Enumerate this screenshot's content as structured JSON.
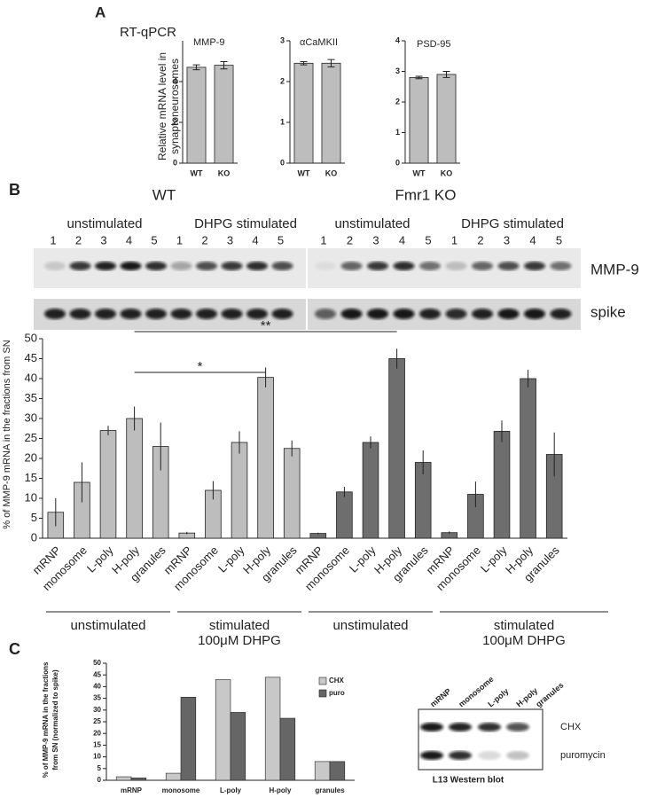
{
  "panel_a": {
    "label": "A",
    "title": "RT-qPCR",
    "ylabel": [
      "Relative mRNA level in",
      "synaptoneurosomes"
    ]
  },
  "panel_b": {
    "label": "B",
    "blot": {
      "genotypes": [
        "WT",
        "Fmr1 KO"
      ],
      "conditions": [
        "unstimulated",
        "DHPG stimulated"
      ],
      "lanes": [
        "1",
        "2",
        "3",
        "4",
        "5"
      ],
      "rows": [
        "MMP-9",
        "spike"
      ]
    }
  },
  "panel_c": {
    "label": "C",
    "western": {
      "lanes": [
        "mRNP",
        "monosome",
        "L-poly",
        "H-poly",
        "granules"
      ],
      "rows": [
        "CHX",
        "puromycin"
      ],
      "caption": "L13 Western blot"
    }
  },
  "chart_data": [
    {
      "type": "bar",
      "title": "MMP-9",
      "categories": [
        "WT",
        "KO"
      ],
      "values": [
        4.7,
        4.8
      ],
      "errors": [
        0.12,
        0.18
      ],
      "color": "#bdbdbd",
      "ylim": [
        0,
        6
      ],
      "yticks": [
        0,
        2,
        4
      ]
    },
    {
      "type": "bar",
      "title": "αCaMKII",
      "categories": [
        "WT",
        "KO"
      ],
      "values": [
        2.45,
        2.45
      ],
      "errors": [
        0.04,
        0.09
      ],
      "color": "#bdbdbd",
      "ylim": [
        0,
        3
      ],
      "yticks": [
        0,
        1,
        2,
        3
      ]
    },
    {
      "type": "bar",
      "title": "PSD-95",
      "categories": [
        "WT",
        "KO"
      ],
      "values": [
        2.8,
        2.9
      ],
      "errors": [
        0.04,
        0.1
      ],
      "color": "#bdbdbd",
      "ylim": [
        0,
        4
      ],
      "yticks": [
        0,
        1,
        2,
        3,
        4
      ]
    },
    {
      "type": "bar",
      "ylabel": "% of MMP-9 mRNA in the fractions from SN",
      "categories": [
        "mRNP",
        "monosome",
        "L-poly",
        "H-poly",
        "granules",
        "mRNP",
        "monosome",
        "L-poly",
        "H-poly",
        "granules",
        "mRNP",
        "monosome",
        "L-poly",
        "H-poly",
        "granules",
        "mRNP",
        "monosome",
        "L-poly",
        "H-poly",
        "granules"
      ],
      "values": [
        6.5,
        14,
        27,
        30,
        23,
        1.3,
        12,
        24,
        40.3,
        22.5,
        1.2,
        11.6,
        24,
        45,
        19,
        1.4,
        11,
        26.8,
        40,
        21
      ],
      "errors": [
        3.5,
        5,
        1.2,
        3,
        6,
        0.3,
        2.3,
        2.8,
        2.5,
        2,
        0.2,
        1.3,
        1.5,
        2.5,
        3,
        0.3,
        3.2,
        2.7,
        2.2,
        5.5
      ],
      "colors": [
        "#bdbdbd",
        "#bdbdbd",
        "#bdbdbd",
        "#bdbdbd",
        "#bdbdbd",
        "#bdbdbd",
        "#bdbdbd",
        "#bdbdbd",
        "#bdbdbd",
        "#bdbdbd",
        "#6e6e6e",
        "#6e6e6e",
        "#6e6e6e",
        "#6e6e6e",
        "#6e6e6e",
        "#6e6e6e",
        "#6e6e6e",
        "#6e6e6e",
        "#6e6e6e",
        "#6e6e6e"
      ],
      "ylim": [
        0,
        50
      ],
      "yticks": [
        0,
        5,
        10,
        15,
        20,
        25,
        30,
        35,
        40,
        45,
        50
      ],
      "groups": [
        [
          "unstimulated"
        ],
        [
          "stimulated",
          "100μM DHPG"
        ],
        [
          "unstimulated"
        ],
        [
          "stimulated",
          "100μM DHPG"
        ]
      ],
      "annotations": [
        "*",
        "**"
      ]
    },
    {
      "type": "grouped_bar",
      "ylabel": [
        "% of MMP-9 mRNA in the fractions",
        "from SN (normalized to spike)"
      ],
      "categories": [
        "mRNP",
        "monosome",
        "L-poly",
        "H-poly",
        "granules"
      ],
      "series": [
        {
          "name": "CHX",
          "color": "#c8c8c8",
          "values": [
            1.5,
            3,
            43,
            44,
            8
          ]
        },
        {
          "name": "puro",
          "color": "#666666",
          "values": [
            1,
            35.5,
            29,
            26.5,
            8
          ]
        }
      ],
      "ylim": [
        0,
        50
      ],
      "yticks": [
        0,
        5,
        10,
        15,
        20,
        25,
        30,
        35,
        40,
        45,
        50
      ],
      "legend": "upper right"
    }
  ]
}
